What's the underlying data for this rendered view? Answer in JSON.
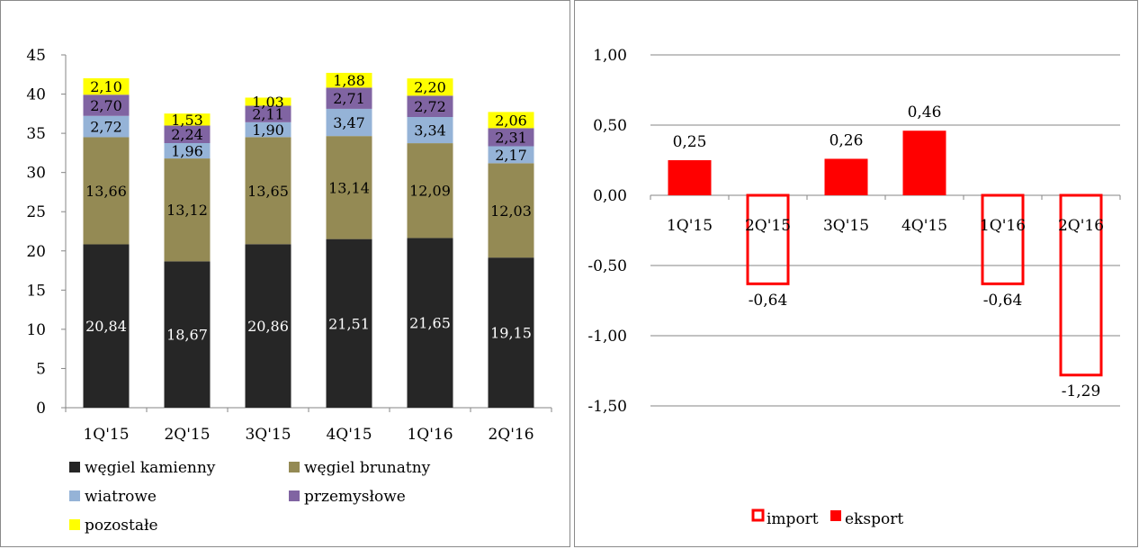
{
  "chart_data": [
    {
      "type": "bar",
      "stacked": true,
      "categories": [
        "1Q'15",
        "2Q'15",
        "3Q'15",
        "4Q'15",
        "1Q'16",
        "2Q'16"
      ],
      "series": [
        {
          "name": "węgiel kamienny",
          "color": "#262626",
          "label_color": "#ffffff",
          "values": [
            20.84,
            18.67,
            20.86,
            21.51,
            21.65,
            19.15
          ],
          "labels": [
            "20,84",
            "18,67",
            "20,86",
            "21,51",
            "21,65",
            "19,15"
          ]
        },
        {
          "name": "węgiel brunatny",
          "color": "#948a54",
          "label_color": "#000000",
          "values": [
            13.66,
            13.12,
            13.65,
            13.14,
            12.09,
            12.03
          ],
          "labels": [
            "13,66",
            "13,12",
            "13,65",
            "13,14",
            "12,09",
            "12,03"
          ]
        },
        {
          "name": "wiatrowe",
          "color": "#95b3d7",
          "label_color": "#000000",
          "values": [
            2.72,
            1.96,
            1.9,
            3.47,
            3.34,
            2.17
          ],
          "labels": [
            "2,72",
            "1,96",
            "1,90",
            "3,47",
            "3,34",
            "2,17"
          ]
        },
        {
          "name": "przemysłowe",
          "color": "#8064a2",
          "label_color": "#000000",
          "values": [
            2.7,
            2.24,
            2.11,
            2.71,
            2.72,
            2.31
          ],
          "labels": [
            "2,70",
            "2,24",
            "2,11",
            "2,71",
            "2,72",
            "2,31"
          ]
        },
        {
          "name": "pozostałe",
          "color": "#ffff00",
          "label_color": "#000000",
          "values": [
            2.1,
            1.53,
            1.03,
            1.88,
            2.2,
            2.06
          ],
          "labels": [
            "2,10",
            "1,53",
            "1,03",
            "1,88",
            "2,20",
            "2,06"
          ]
        }
      ],
      "ylim": [
        0,
        45
      ],
      "yticks": [
        0,
        5,
        10,
        15,
        20,
        25,
        30,
        35,
        40,
        45
      ],
      "ytick_labels": [
        "0",
        "5",
        "10",
        "15",
        "20",
        "25",
        "30",
        "35",
        "40",
        "45"
      ],
      "grid": false,
      "legend_position": "bottom"
    },
    {
      "type": "bar",
      "categories": [
        "1Q'15",
        "2Q'15",
        "3Q'15",
        "4Q'15",
        "1Q'16",
        "2Q'16"
      ],
      "bars": [
        {
          "series": "eksport",
          "value": 0.25,
          "label": "0,25"
        },
        {
          "series": "import",
          "value": -0.64,
          "label": "-0,64"
        },
        {
          "series": "eksport",
          "value": 0.26,
          "label": "0,26"
        },
        {
          "series": "eksport",
          "value": 0.46,
          "label": "0,46"
        },
        {
          "series": "import",
          "value": -0.64,
          "label": "-0,64"
        },
        {
          "series": "import",
          "value": -1.29,
          "label": "-1,29"
        }
      ],
      "series": [
        {
          "name": "import",
          "color": "#ff0000",
          "style": "outline"
        },
        {
          "name": "eksport",
          "color": "#ff0000",
          "style": "filled"
        }
      ],
      "ylim": [
        -1.5,
        1.0
      ],
      "yticks": [
        1.0,
        0.5,
        0.0,
        -0.5,
        -1.0,
        -1.5
      ],
      "ytick_labels": [
        "1,00",
        "0,50",
        "0,00",
        "-0,50",
        "-1,00",
        "-1,50"
      ],
      "grid": true,
      "legend_position": "bottom"
    }
  ]
}
